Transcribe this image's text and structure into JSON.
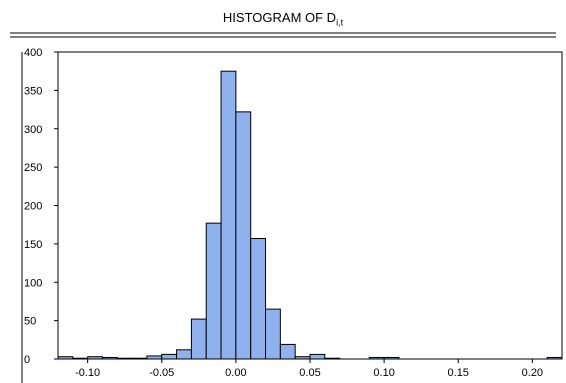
{
  "chart_data": {
    "type": "bar",
    "title_main": "HISTOGRAM OF D",
    "title_subscript": "i,t",
    "xlabel": "",
    "ylabel": "",
    "bin_width": 0.01,
    "bin_lefts": [
      -0.12,
      -0.11,
      -0.1,
      -0.09,
      -0.08,
      -0.07,
      -0.06,
      -0.05,
      -0.04,
      -0.03,
      -0.02,
      -0.01,
      0.0,
      0.01,
      0.02,
      0.03,
      0.04,
      0.05,
      0.06,
      0.07,
      0.08,
      0.09,
      0.1,
      0.11,
      0.12,
      0.13,
      0.14,
      0.15,
      0.16,
      0.17,
      0.18,
      0.19,
      0.2,
      0.21
    ],
    "values": [
      3,
      1,
      3,
      2,
      1,
      1,
      4,
      6,
      12,
      52,
      177,
      375,
      322,
      157,
      65,
      19,
      3,
      6,
      1,
      0,
      0,
      2,
      2,
      0,
      0,
      0,
      0,
      0,
      0,
      0,
      0,
      0,
      0,
      2
    ],
    "xlim": [
      -0.12,
      0.22
    ],
    "ylim": [
      0,
      400
    ],
    "x_ticks": [
      -0.1,
      -0.05,
      0.0,
      0.05,
      0.1,
      0.15,
      0.2
    ],
    "x_tick_labels": [
      "-0.10",
      "-0.05",
      "0.00",
      "0.05",
      "0.10",
      "0.15",
      "0.20"
    ],
    "y_ticks": [
      0,
      50,
      100,
      150,
      200,
      250,
      300,
      350,
      400
    ],
    "y_tick_labels": [
      "0",
      "50",
      "100",
      "150",
      "200",
      "250",
      "300",
      "350",
      "400"
    ],
    "bar_color": "#8fb1ee",
    "bar_edge_color": "#000000",
    "grid": false,
    "legend": "none"
  }
}
